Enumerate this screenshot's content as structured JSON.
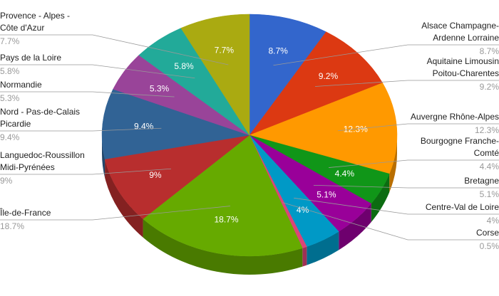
{
  "chart_data": {
    "type": "pie",
    "categories": [
      "Alsace Champagne-Ardenne Lorraine",
      "Aquitaine Limousin Poitou-Charentes",
      "Auvergne Rhône-Alpes",
      "Bourgogne Franche-Comté",
      "Bretagne",
      "Centre-Val de Loire",
      "Corse",
      "Île-de-France",
      "Languedoc-Roussillon Midi-Pyrénées",
      "Nord - Pas-de-Calais Picardie",
      "Normandie",
      "Pays de la Loire",
      "Provence - Alpes - Côte d'Azur"
    ],
    "values": [
      8.7,
      9.2,
      12.3,
      4.4,
      5.1,
      4,
      0.5,
      18.7,
      9,
      9.4,
      5.3,
      5.8,
      7.7
    ],
    "value_labels": [
      "8.7%",
      "9.2%",
      "12.3%",
      "4.4%",
      "5.1%",
      "4%",
      "0.5%",
      "18.7%",
      "9%",
      "9.4%",
      "5.3%",
      "5.8%",
      "7.7%"
    ],
    "colors": [
      "#3366cc",
      "#dc3912",
      "#ff9900",
      "#109618",
      "#990099",
      "#0099c6",
      "#dd4477",
      "#66aa00",
      "#b82e2e",
      "#316395",
      "#994499",
      "#22aa99",
      "#aaaa11"
    ]
  }
}
